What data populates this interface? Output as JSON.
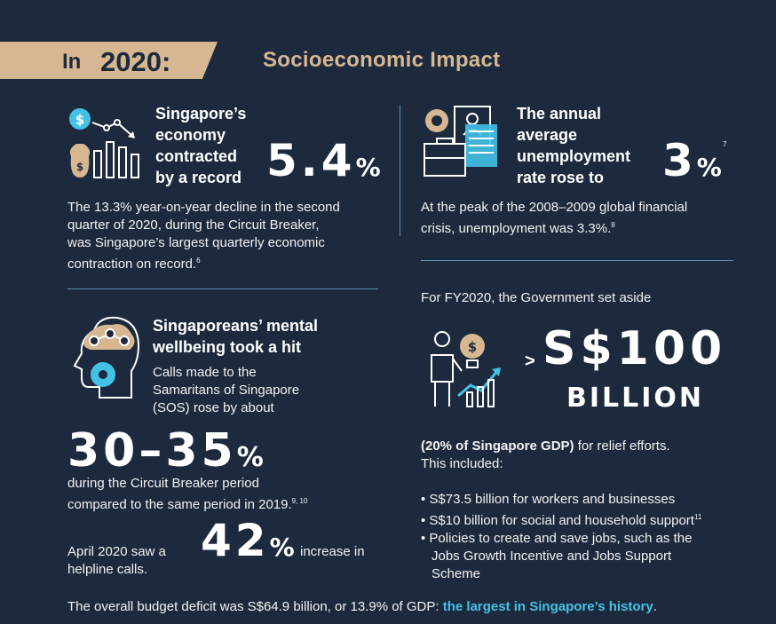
{
  "header": {
    "in_label": "In",
    "year": "2020:",
    "title": "Socioeconomic Impact"
  },
  "economy": {
    "heading_lines": [
      "Singapore’s",
      "economy",
      "contracted",
      "by a record"
    ],
    "big_value": "5.4",
    "pct": "%",
    "body_lines": [
      "The 13.3% year-on-year decline in the second",
      "quarter of 2020, during the Circuit Breaker,",
      "was Singapore’s largest quarterly economic",
      "contraction on record."
    ],
    "footnote": "6"
  },
  "unemployment": {
    "heading_lines": [
      "The annual",
      "average",
      "unemployment",
      "rate rose to"
    ],
    "big_value": "3",
    "pct": "%",
    "footnote_big": "7",
    "body_lines": [
      "At the peak of the 2008–2009 global financial",
      "crisis, unemployment was 3.3%."
    ],
    "footnote": "8"
  },
  "mental": {
    "heading_lines": [
      "Singaporeans’ mental",
      "wellbeing took a hit"
    ],
    "body_lines": [
      "Calls made to the",
      "Samaritans of Singapore",
      "(SOS) rose by about"
    ],
    "big_value": "30–35",
    "pct": "%",
    "after_lines": [
      "during the Circuit Breaker period",
      "compared to the same period in 2019."
    ],
    "footnote": "9, 10",
    "april_prefix_1": "April 2020 saw a",
    "april_prefix_2": "helpline calls.",
    "april_big": "42",
    "april_pct": "%",
    "april_suffix": "increase in"
  },
  "budget": {
    "intro": "For FY2020, the Government set aside",
    "gt": ">",
    "big_value": "S$100",
    "big_unit": "BILLION",
    "gdp_bold": "(20% of Singapore GDP)",
    "gdp_rest": " for relief efforts.",
    "gdp_line2": "This included:",
    "bullets": [
      "S$73.5 billion for workers and businesses",
      "S$10 billion for social and household support",
      "Policies to create and save jobs, such as the",
      "Jobs Growth Incentive and Jobs Support",
      "Scheme"
    ],
    "bullet_footnote": "11"
  },
  "footer": {
    "text": "The overall budget deficit was S$64.9 billion, or 13.9% of GDP: ",
    "highlight": "the largest in Singapore’s history",
    "end": "."
  },
  "colors": {
    "background": "#1d2a3d",
    "gold": "#d7b792",
    "accent_blue": "#43c2e6",
    "divider": "#5e90b0"
  }
}
